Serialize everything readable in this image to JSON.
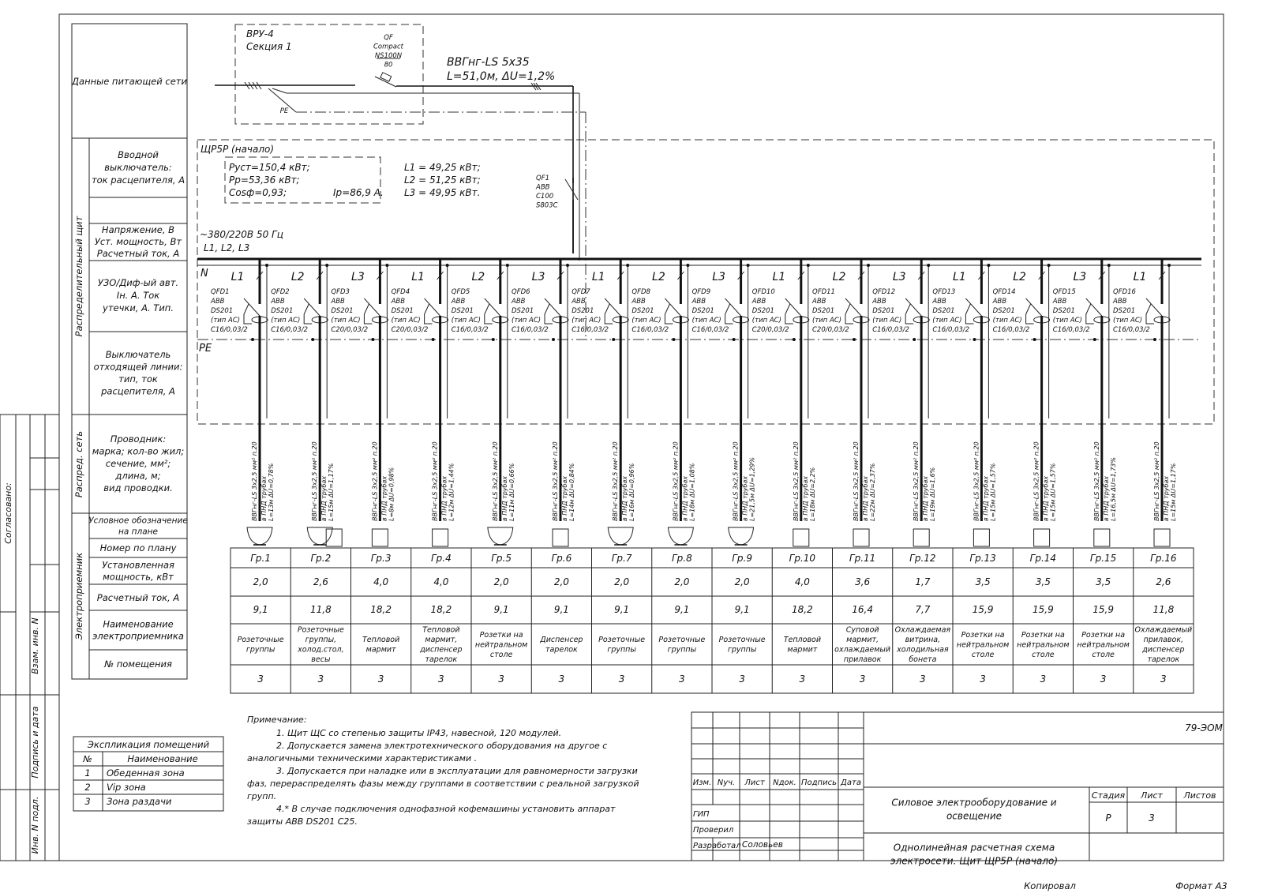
{
  "header_rows": {
    "supply": "Данные питающей сети|",
    "panel_label": "Распределительный щит",
    "input_breaker": "Вводной|выключатель:|ток расцепителя, А",
    "voltage": "Напряжение, В|Уст. мощность, Вт|Расчетный ток, А",
    "rcd": "УЗО/Диф-ый авт.|Iн. А. Ток|утечки, А. Тип.",
    "outgoing": "Выключатель|отходящей линии:|тип, ток|расцепителя, А",
    "net_label": "Распред. сеть",
    "conductor": "Проводник:|марка; кол-во жил;|сечение, мм²;|длина, м;|вид проводки.",
    "consumer_label": "Электроприемник",
    "symbol": "Условное обозначение|на плане",
    "plan_no": "Номер по плану",
    "power": "Установленная|мощность, кВт",
    "current": "Расчетный ток, А",
    "name": "Наименование|электроприемника",
    "room": "№ помещения"
  },
  "supply": {
    "vru": "ВРУ-4",
    "section": "Секция 1",
    "qf": [
      "QF",
      "Compact",
      "NS100N",
      "80"
    ],
    "cable": "ВВГнг-LS 5х35",
    "cable_params": "L=51,0м, ΔU=1,2%",
    "pe": "PE"
  },
  "panel": {
    "title": "ЩР5Р (начало)",
    "p_inst": "Руст=150,4 кВт;",
    "p_calc": "Рр=53,36 кВт;",
    "cos": "Cosф=0,93;",
    "ip": "Iр=86,9 А.",
    "l1": "L1 = 49,25 кВт;",
    "l2": "L2 = 51,25 кВт;",
    "l3": "L3 = 49,95 кВт.",
    "qf1": [
      "QF1",
      "ABB",
      "C100",
      "S803C"
    ],
    "voltage": "~380/220В 50 Гц",
    "phases": "L1, L2, L3",
    "n": "N",
    "pe": "PE"
  },
  "groups": [
    {
      "phase": "L1",
      "qfd": "QFD1",
      "rating": "C16/0,03/2",
      "len": "L=13м",
      "du": "ΔU=0,78%",
      "load": "socket",
      "gr": "Гр.1",
      "p": "2,0",
      "i": "9,1",
      "name": "Розеточные|группы",
      "room": "3"
    },
    {
      "phase": "L2",
      "qfd": "QFD2",
      "rating": "C16/0,03/2",
      "len": "L=15м",
      "du": "ΔU=1,17%",
      "load": "socket+box",
      "gr": "Гр.2",
      "p": "2,6",
      "i": "11,8",
      "name": "Розеточные|группы,|холод.стол,|весы",
      "room": "3"
    },
    {
      "phase": "L3",
      "qfd": "QFD3",
      "rating": "C20/0,03/2",
      "len": "L=8м",
      "du": "ΔU=0,98%",
      "load": "box",
      "gr": "Гр.3",
      "p": "4,0",
      "i": "18,2",
      "name": "Тепловой|мармит",
      "room": "3"
    },
    {
      "phase": "L1",
      "qfd": "QFD4",
      "rating": "C20/0,03/2",
      "len": "L=12м",
      "du": "ΔU=1,44%",
      "load": "box",
      "gr": "Гр.4",
      "p": "4,0",
      "i": "18,2",
      "name": "Тепловой|мармит,|диспенсер|тарелок",
      "room": "3"
    },
    {
      "phase": "L2",
      "qfd": "QFD5",
      "rating": "C16/0,03/2",
      "len": "L=11м",
      "du": "ΔU=0,66%",
      "load": "socket",
      "gr": "Гр.5",
      "p": "2,0",
      "i": "9,1",
      "name": "Розетки на|нейтральном|столе",
      "room": "3"
    },
    {
      "phase": "L3",
      "qfd": "QFD6",
      "rating": "C16/0,03/2",
      "len": "L=14м",
      "du": "ΔU=0,84%",
      "load": "box",
      "gr": "Гр.6",
      "p": "2,0",
      "i": "9,1",
      "name": "Диспенсер|тарелок",
      "room": "3"
    },
    {
      "phase": "L1",
      "qfd": "QFD7",
      "rating": "C16/0,03/2",
      "len": "L=16м",
      "du": "ΔU=0,96%",
      "load": "socket",
      "gr": "Гр.7",
      "p": "2,0",
      "i": "9,1",
      "name": "Розеточные|группы",
      "room": "3"
    },
    {
      "phase": "L2",
      "qfd": "QFD8",
      "rating": "C16/0,03/2",
      "len": "L=18м",
      "du": "ΔU=1,08%",
      "load": "socket",
      "gr": "Гр.8",
      "p": "2,0",
      "i": "9,1",
      "name": "Розеточные|группы",
      "room": "3"
    },
    {
      "phase": "L3",
      "qfd": "QFD9",
      "rating": "C16/0,03/2",
      "len": "L=21,5м",
      "du": "ΔU=1,29%",
      "load": "socket",
      "gr": "Гр.9",
      "p": "2,0",
      "i": "9,1",
      "name": "Розеточные|группы",
      "room": "3"
    },
    {
      "phase": "L1",
      "qfd": "QFD10",
      "rating": "C20/0,03/2",
      "len": "L=18м",
      "du": "ΔU=2,2%",
      "load": "box",
      "gr": "Гр.10",
      "p": "4,0",
      "i": "18,2",
      "name": "Тепловой|мармит",
      "room": "3"
    },
    {
      "phase": "L2",
      "qfd": "QFD11",
      "rating": "C20/0,03/2",
      "len": "L=22м",
      "du": "ΔU=2,37%",
      "load": "box",
      "gr": "Гр.11",
      "p": "3,6",
      "i": "16,4",
      "name": "Суповой|мармит,|охлаждаемый|прилавок",
      "room": "3"
    },
    {
      "phase": "L3",
      "qfd": "QFD12",
      "rating": "C16/0,03/2",
      "len": "L=19м",
      "du": "ΔU=1,6%",
      "load": "box",
      "gr": "Гр.12",
      "p": "1,7",
      "i": "7,7",
      "name": "Охлаждаемая|витрина,|холодильная|бонета",
      "room": "3"
    },
    {
      "phase": "L1",
      "qfd": "QFD13",
      "rating": "C16/0,03/2",
      "len": "L=15м",
      "du": "ΔU=1,57%",
      "load": "box",
      "gr": "Гр.13",
      "p": "3,5",
      "i": "15,9",
      "name": "Розетки на|нейтральном|столе",
      "room": "3"
    },
    {
      "phase": "L2",
      "qfd": "QFD14",
      "rating": "C16/0,03/2",
      "len": "L=15м",
      "du": "ΔU=1,57%",
      "load": "box",
      "gr": "Гр.14",
      "p": "3,5",
      "i": "15,9",
      "name": "Розетки на|нейтральном|столе",
      "room": "3"
    },
    {
      "phase": "L3",
      "qfd": "QFD15",
      "rating": "C16/0,03/2",
      "len": "L=16,5м",
      "du": "ΔU=1,73%",
      "load": "box",
      "gr": "Гр.15",
      "p": "3,5",
      "i": "15,9",
      "name": "Розетки на|нейтральном|столе",
      "room": "3"
    },
    {
      "phase": "L1",
      "qfd": "QFD16",
      "rating": "C16/0,03/2",
      "len": "L=15м",
      "du": "ΔU=1,17%",
      "load": "box",
      "gr": "Гр.16",
      "p": "2,6",
      "i": "11,8",
      "name": "Охлаждаемый|прилавок,|диспенсер|тарелок",
      "room": "3"
    }
  ],
  "breaker_common": {
    "maker": "ABB",
    "model": "DS201",
    "type": "(тип АС)"
  },
  "cable_common": {
    "mark": "ВВГнг-LS 3х2,5 мм² п.20",
    "route": "в ПНД трубах"
  },
  "notes": {
    "title": "Примечание:",
    "lines": [
      "1. Щит ЩС со степенью защиты IP43, навесной, 120 модулей.",
      "2. Допускается замена электротехнического оборудования на другое с",
      "аналогичными техническими характеристиками .",
      "3. Допускается при наладке или в эксплуатации для равномерности загрузки",
      "фаз, перераспределять фазы между группами в соответствии с реальной загрузкой",
      "групп.",
      "4.* В случае подключения однофазной кофемашины установить аппарат",
      "защиты ABB DS201 C25."
    ]
  },
  "rooms": {
    "title": "Экспликация помещений",
    "col_no": "№",
    "col_name": "Наименование",
    "rows": [
      [
        "1",
        "Обеденная зона"
      ],
      [
        "2",
        "Vip зона"
      ],
      [
        "3",
        "Зона раздачи"
      ]
    ]
  },
  "stamp": {
    "agreed": "Согласовано:",
    "vzam": "Взам. инв. N",
    "sign": "Подпись и дата",
    "inv": "Инв. N подл."
  },
  "title_block": {
    "code": "79-ЭОМ",
    "cols": [
      "Изм.",
      "Nуч.",
      "Лист",
      "Nдок.",
      "Подпись",
      "Дата"
    ],
    "roles": [
      "ГИП",
      "Проверил",
      "Разработал"
    ],
    "developer": "Соловьев",
    "section": "Силовое электрооборудование и|освещение",
    "sheet_title": "Однолинейная расчетная схема|электросети. Щит ЩР5Р (начало)",
    "stage_h": "Стадия",
    "sheet_h": "Лист",
    "sheets_h": "Листов",
    "stage": "Р",
    "sheet": "3",
    "copied": "Копировал",
    "format": "Формат А3"
  }
}
